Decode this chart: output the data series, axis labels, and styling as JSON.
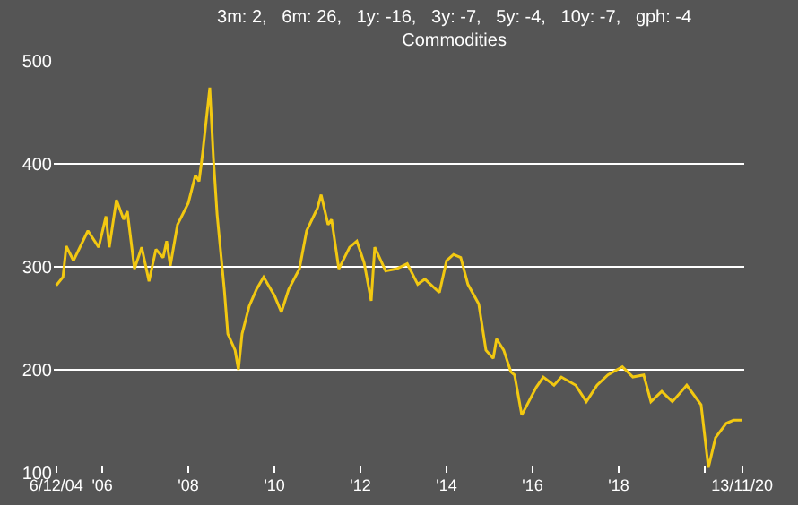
{
  "chart_data": {
    "type": "line",
    "title": "3m: 2,   6m: 26,   1y: -16,   3y: -7,   5y: -4,   10y: -7,   gph: -4",
    "subtitle": "Commodities",
    "x": [
      "2004-12-06",
      "2005-02",
      "2005-03",
      "2005-05",
      "2005-09",
      "2005-12",
      "2006-02",
      "2006-03",
      "2006-05",
      "2006-07",
      "2006-08",
      "2006-10",
      "2006-12",
      "2007-02",
      "2007-04",
      "2007-06",
      "2007-07",
      "2007-08",
      "2007-10",
      "2008-01",
      "2008-03",
      "2008-04",
      "2008-05",
      "2008-07",
      "2008-08",
      "2008-09",
      "2008-11",
      "2008-12",
      "2009-02",
      "2009-03",
      "2009-04",
      "2009-06",
      "2009-08",
      "2009-10",
      "2010-01",
      "2010-03",
      "2010-05",
      "2010-08",
      "2010-10",
      "2011-01",
      "2011-02",
      "2011-04",
      "2011-05",
      "2011-07",
      "2011-10",
      "2011-12",
      "2012-02",
      "2012-04",
      "2012-05",
      "2012-08",
      "2012-11",
      "2013-02",
      "2013-05",
      "2013-07",
      "2013-11",
      "2014-01",
      "2014-03",
      "2014-05",
      "2014-07",
      "2014-10",
      "2014-12",
      "2015-02",
      "2015-03",
      "2015-05",
      "2015-07",
      "2015-08",
      "2015-10",
      "2016-02",
      "2016-04",
      "2016-07",
      "2016-09",
      "2017-01",
      "2017-04",
      "2017-07",
      "2017-10",
      "2018-02",
      "2018-05",
      "2018-08",
      "2018-10",
      "2019-01",
      "2019-04",
      "2019-08",
      "2019-12",
      "2020-02",
      "2020-04",
      "2020-07",
      "2020-09",
      "2020-11-13"
    ],
    "series": [
      {
        "color": "#f2c811",
        "values": [
          282,
          290,
          320,
          306,
          335,
          319,
          349,
          319,
          365,
          346,
          354,
          298,
          319,
          286,
          317,
          309,
          325,
          301,
          341,
          362,
          389,
          383,
          410,
          474,
          405,
          351,
          278,
          235,
          219,
          200,
          235,
          262,
          278,
          290,
          272,
          256,
          278,
          298,
          335,
          357,
          370,
          341,
          346,
          298,
          319,
          325,
          304,
          267,
          319,
          296,
          298,
          303,
          283,
          288,
          275,
          306,
          312,
          309,
          283,
          264,
          219,
          211,
          230,
          219,
          198,
          195,
          156,
          183,
          193,
          185,
          193,
          185,
          169,
          185,
          195,
          203,
          193,
          195,
          169,
          179,
          169,
          185,
          166,
          105,
          134,
          148,
          151,
          151
        ]
      }
    ],
    "ylim": [
      100,
      500
    ],
    "yticks": [
      100,
      200,
      300,
      400,
      500
    ],
    "xlim": [
      "2004-11-15",
      "2020-12-01"
    ],
    "xticks": [
      {
        "value": "2004-12-06",
        "label": "6/12/04"
      },
      {
        "value": "2006-01-01",
        "label": "'06"
      },
      {
        "value": "2008-01-01",
        "label": "'08"
      },
      {
        "value": "2010-01-01",
        "label": "'10"
      },
      {
        "value": "2012-01-01",
        "label": "'12"
      },
      {
        "value": "2014-01-01",
        "label": "'14"
      },
      {
        "value": "2016-01-01",
        "label": "'16"
      },
      {
        "value": "2018-01-01",
        "label": "'18"
      },
      {
        "value": "2020-01-01",
        "label": null
      },
      {
        "value": "2020-11-13",
        "label": "13/11/20"
      }
    ],
    "grid": "y",
    "marker": "none",
    "line_style": "solid"
  }
}
